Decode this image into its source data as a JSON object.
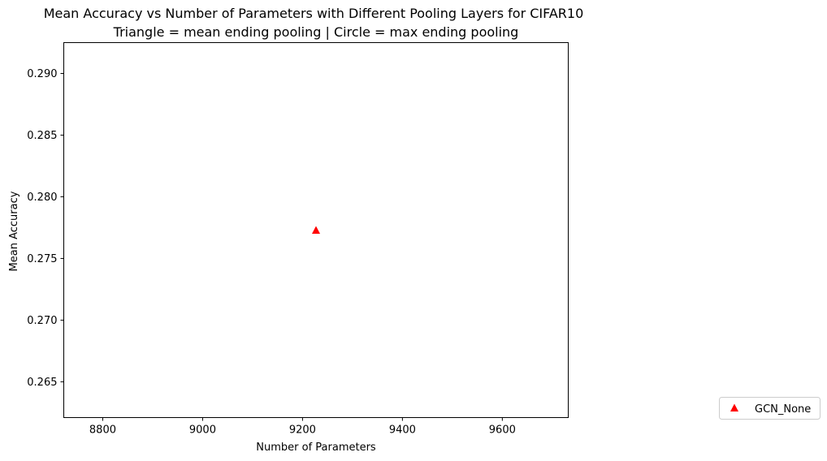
{
  "chart_data": {
    "type": "scatter",
    "title": "Mean Accuracy vs Number of Parameters with Different Pooling Layers for CIFAR10",
    "subtitle": "Triangle = mean ending pooling | Circle = max ending pooling",
    "xlabel": "Number of Parameters",
    "ylabel": "Mean Accuracy",
    "xlim": [
      8722,
      9732
    ],
    "ylim": [
      0.2621,
      0.2925
    ],
    "x_ticks": [
      8800,
      9000,
      9200,
      9400,
      9600
    ],
    "y_ticks": [
      0.265,
      0.27,
      0.275,
      0.28,
      0.285,
      0.29
    ],
    "x_tick_labels": [
      "8800",
      "9000",
      "9200",
      "9400",
      "9600"
    ],
    "y_tick_labels": [
      "0.265",
      "0.270",
      "0.275",
      "0.280",
      "0.285",
      "0.290"
    ],
    "grid": false,
    "legend_placement": "bottom-right outside plot",
    "series": [
      {
        "name": "GCN_None",
        "marker": "triangle",
        "color": "#ff0000",
        "points": [
          {
            "x": 9227,
            "y": 0.2773
          }
        ]
      }
    ]
  }
}
